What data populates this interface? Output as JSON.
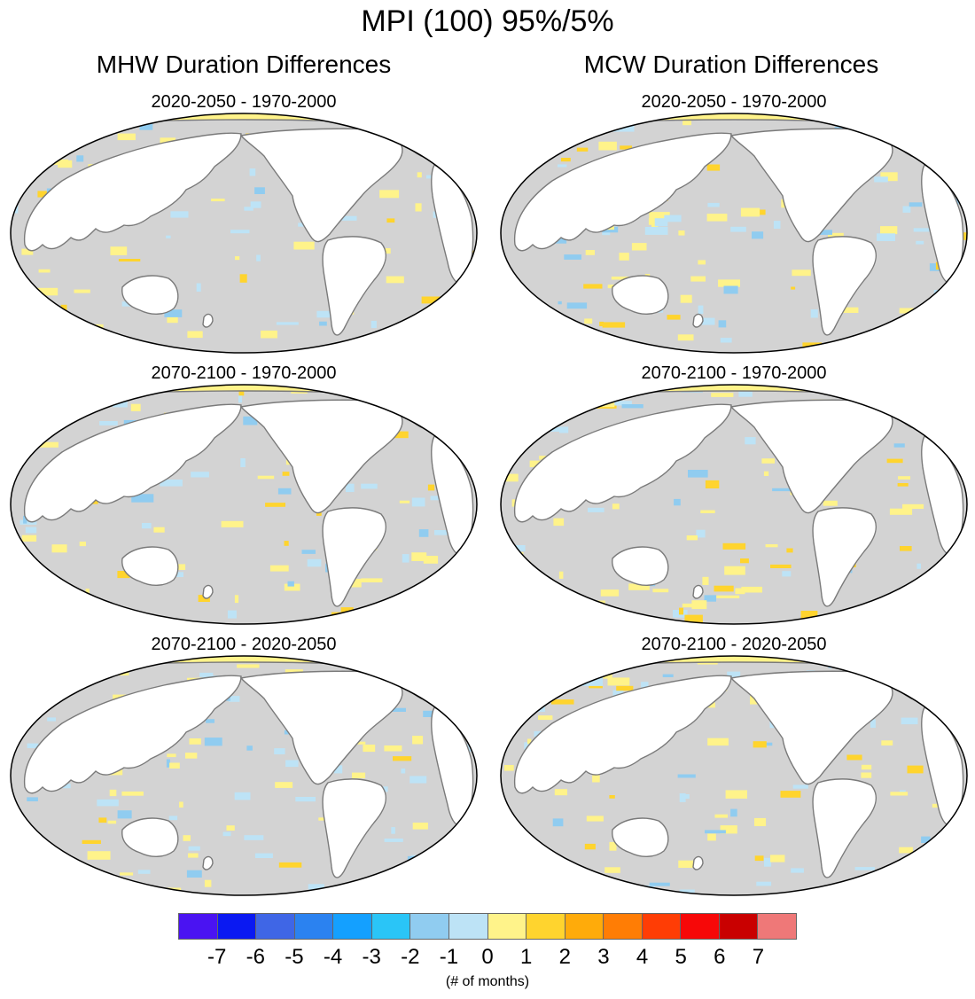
{
  "title": "MPI (100) 95%/5%",
  "columns": [
    {
      "title": "MHW Duration Differences",
      "panels": [
        {
          "title": "2020-2050 - 1970-2000"
        },
        {
          "title": "2070-2100 - 1970-2000"
        },
        {
          "title": "2070-2100 - 2020-2050"
        }
      ]
    },
    {
      "title": "MCW Duration Differences",
      "panels": [
        {
          "title": "2020-2050 - 1970-2000"
        },
        {
          "title": "2070-2100 - 1970-2000"
        },
        {
          "title": "2070-2100 - 2020-2050"
        }
      ]
    }
  ],
  "colorbar": {
    "colors": [
      "#4a13f2",
      "#0a19f2",
      "#3f66e6",
      "#2b82f0",
      "#14a0ff",
      "#2ac5f7",
      "#90ccf0",
      "#bde3f6",
      "#fff38a",
      "#ffd42e",
      "#ffab0a",
      "#ff7d05",
      "#ff3d05",
      "#f70808",
      "#c90000",
      "#ef7878"
    ],
    "labels": [
      "-7",
      "-6",
      "-5",
      "-4",
      "-3",
      "-2",
      "-1",
      "0",
      "1",
      "2",
      "3",
      "4",
      "5",
      "6",
      "7"
    ],
    "units": "(# of months)"
  },
  "map_colors": {
    "ocean": "#d3d3d3",
    "land": "#ffffff",
    "coast": "#7a7a7a",
    "frame": "#000000"
  }
}
